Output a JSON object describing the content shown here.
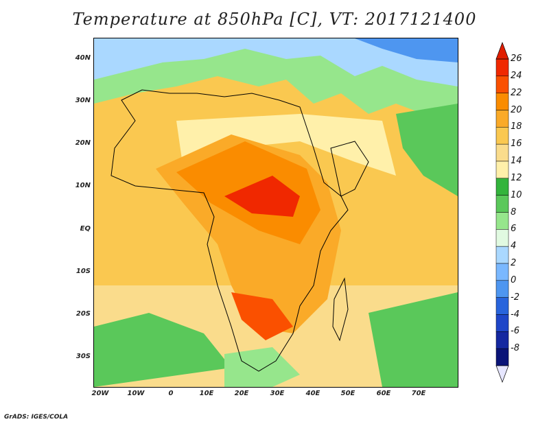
{
  "title": "Temperature at 850hPa [C], VT: 2017121400",
  "footer": "GrADS: IGES/COLA",
  "map": {
    "lat_labels": [
      "40N",
      "30N",
      "20N",
      "10N",
      "EQ",
      "10S",
      "20S",
      "30S"
    ],
    "lon_labels": [
      "20W",
      "10W",
      "0",
      "10E",
      "20E",
      "30E",
      "40E",
      "50E",
      "60E",
      "70E"
    ]
  },
  "colorbar": {
    "labels": [
      "26",
      "24",
      "22",
      "20",
      "18",
      "16",
      "14",
      "12",
      "10",
      "8",
      "6",
      "4",
      "2",
      "0",
      "-2",
      "-4",
      "-6",
      "-8"
    ],
    "colors": [
      "#f02800",
      "#fa5000",
      "#fa8c00",
      "#faaa28",
      "#fac850",
      "#fadc8c",
      "#fff0aa",
      "#33b43c",
      "#5ac85a",
      "#96e68c",
      "#e1fae1",
      "#aad8ff",
      "#7ab8ff",
      "#4e96f0",
      "#2864dc",
      "#1e46c8",
      "#1428a0",
      "#0a1478"
    ],
    "top_arrow_color": "#e01e00",
    "bottom_arrow_color": "#e6e6ff"
  }
}
